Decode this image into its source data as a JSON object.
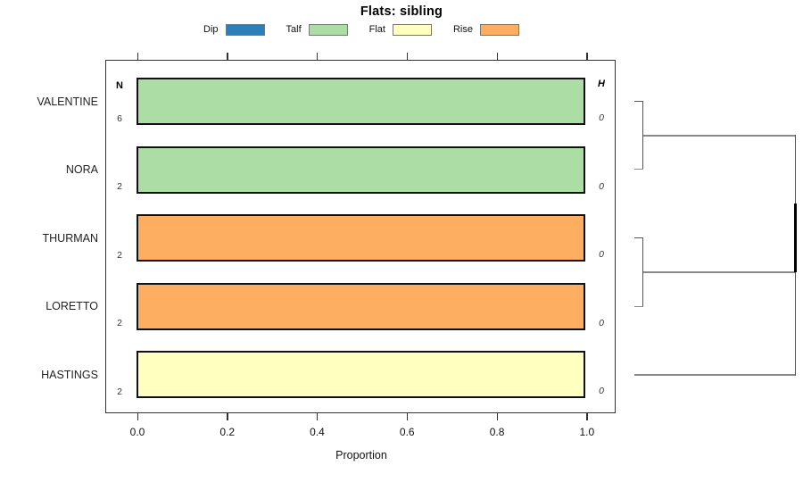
{
  "title": "Flats: sibling",
  "legend": {
    "items": [
      {
        "label": "Dip",
        "color": "#2C7FB8"
      },
      {
        "label": "Talf",
        "color": "#ABDDA4"
      },
      {
        "label": "Flat",
        "color": "#FFFFBF"
      },
      {
        "label": "Rise",
        "color": "#FDAE61"
      }
    ]
  },
  "columns": {
    "n_header": "N",
    "h_header": "H"
  },
  "rows": [
    {
      "label": "VALENTINE",
      "n": "6",
      "h": "0",
      "pattern": "Talf",
      "color": "#ABDDA4"
    },
    {
      "label": "NORA",
      "n": "2",
      "h": "0",
      "pattern": "Talf",
      "color": "#ABDDA4"
    },
    {
      "label": "THURMAN",
      "n": "2",
      "h": "0",
      "pattern": "Rise",
      "color": "#FDAE61"
    },
    {
      "label": "LORETTO",
      "n": "2",
      "h": "0",
      "pattern": "Rise",
      "color": "#FDAE61"
    },
    {
      "label": "HASTINGS",
      "n": "2",
      "h": "0",
      "pattern": "Flat",
      "color": "#FFFFBF"
    }
  ],
  "axis": {
    "label": "Proportion",
    "tick_labels": [
      "0.0",
      "0.2",
      "0.4",
      "0.6",
      "0.8",
      "1.0"
    ]
  },
  "chart_data": {
    "type": "bar",
    "orientation": "horizontal",
    "stacked": true,
    "title": "Flats: sibling",
    "xlabel": "Proportion",
    "xlim": [
      0,
      1
    ],
    "xticks": [
      0.0,
      0.2,
      0.4,
      0.6,
      0.8,
      1.0
    ],
    "grid": false,
    "legend_position": "top",
    "categories": [
      "VALENTINE",
      "NORA",
      "THURMAN",
      "LORETTO",
      "HASTINGS"
    ],
    "series": [
      {
        "name": "Dip",
        "color": "#2C7FB8",
        "values": [
          0,
          0,
          0,
          0,
          0
        ]
      },
      {
        "name": "Talf",
        "color": "#ABDDA4",
        "values": [
          1,
          1,
          0,
          0,
          0
        ]
      },
      {
        "name": "Flat",
        "color": "#FFFFBF",
        "values": [
          0,
          0,
          0,
          0,
          1
        ]
      },
      {
        "name": "Rise",
        "color": "#FDAE61",
        "values": [
          0,
          0,
          1,
          1,
          0
        ]
      }
    ],
    "n_column": {
      "header": "N",
      "values": [
        6,
        2,
        2,
        2,
        2
      ]
    },
    "h_column": {
      "header": "H",
      "values": [
        0,
        0,
        0,
        0,
        0
      ]
    },
    "dendrogram": {
      "position": "right",
      "merges": [
        {
          "members": [
            "VALENTINE",
            "NORA"
          ],
          "height": 0
        },
        {
          "members": [
            "THURMAN",
            "LORETTO"
          ],
          "height": 0
        },
        {
          "members": [
            "cluster-1",
            "cluster-2"
          ],
          "height": 0
        },
        {
          "members": [
            "cluster-3",
            "HASTINGS"
          ],
          "height": 0
        }
      ]
    }
  }
}
